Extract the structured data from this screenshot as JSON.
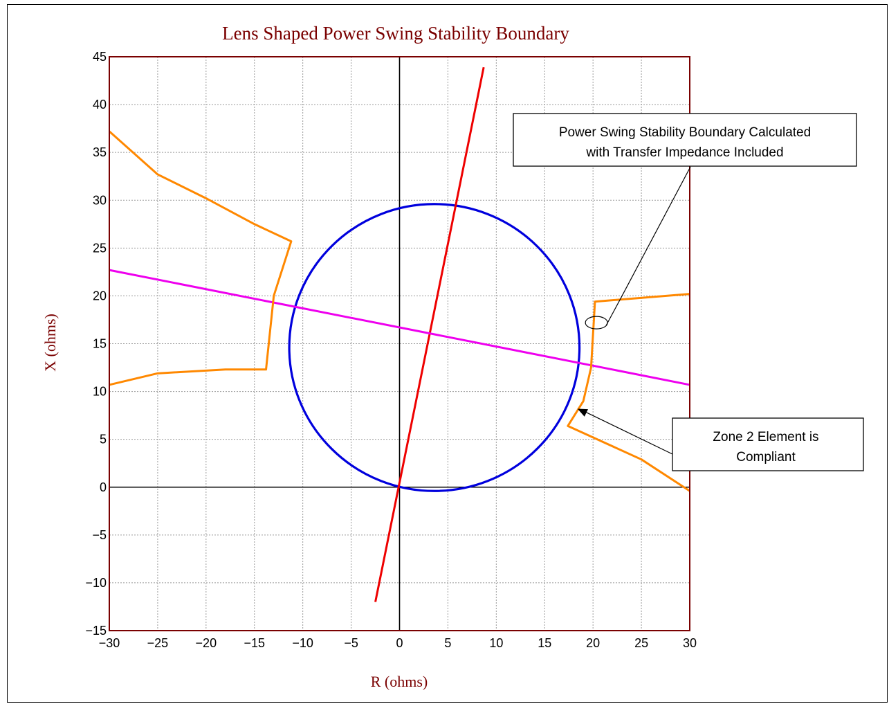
{
  "chart_data": {
    "type": "line",
    "title": "Lens Shaped Power Swing Stability Boundary",
    "xlabel": "R (ohms)",
    "ylabel": "X (ohms)",
    "xlim": [
      -30,
      30
    ],
    "ylim": [
      -15,
      45
    ],
    "x_ticks": [
      -30,
      -25,
      -20,
      -15,
      -10,
      -5,
      0,
      5,
      10,
      15,
      20,
      25,
      30
    ],
    "y_ticks": [
      -15,
      -10,
      -5,
      0,
      5,
      10,
      15,
      20,
      25,
      30,
      35,
      40,
      45
    ],
    "x_tick_labels": [
      "−30",
      "−25",
      "−20",
      "−15",
      "−10",
      "−5",
      "0",
      "5",
      "10",
      "15",
      "20",
      "25",
      "30"
    ],
    "y_tick_labels": [
      "−15",
      "−10",
      "−5",
      "0",
      "5",
      "10",
      "15",
      "20",
      "25",
      "30",
      "35",
      "40",
      "45"
    ],
    "grid": true,
    "series": [
      {
        "color": "#0000dd",
        "kind": "circle",
        "center": [
          3.6,
          14.6
        ],
        "radius": 15.0
      },
      {
        "color": "#ee0000",
        "x": [
          -2.5,
          8.7
        ],
        "y": [
          -12,
          43.9
        ]
      },
      {
        "color": "#ee00ee",
        "x": [
          -30,
          30
        ],
        "y": [
          22.7,
          10.7
        ]
      },
      {
        "color": "#ff8800",
        "x": [
          -30,
          -25,
          -20,
          -15,
          -11.2,
          -13.0,
          -13.8,
          -18,
          -25,
          -30
        ],
        "y": [
          37.2,
          32.7,
          30.2,
          27.5,
          25.7,
          20.0,
          12.3,
          12.3,
          11.9,
          10.7
        ]
      },
      {
        "color": "#ff8800",
        "x": [
          30,
          20.2,
          19.8,
          19.0,
          17.4,
          20,
          25,
          30
        ],
        "y": [
          20.2,
          19.4,
          12.5,
          9.0,
          6.4,
          5.2,
          2.9,
          -0.4
        ]
      }
    ],
    "annotations": [
      {
        "lines": [
          "Power Swing Stability Boundary Calculated",
          "with Transfer Impedance Included"
        ],
        "target": [
          20.5,
          17.2
        ],
        "elbow": [
          23,
          20
        ]
      },
      {
        "lines": [
          "Zone 2 Element is",
          "Compliant"
        ],
        "target": [
          18.4,
          8.2
        ],
        "elbow": [
          28,
          3.4
        ]
      }
    ]
  }
}
